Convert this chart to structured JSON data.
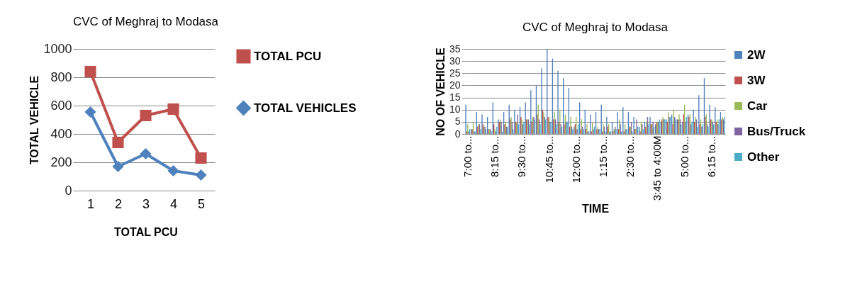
{
  "chart_data": [
    {
      "type": "line",
      "title": "CVC of Meghraj to Modasa",
      "xlabel": "TOTAL PCU",
      "ylabel": "TOTAL VEHICLE",
      "categories": [
        "1",
        "2",
        "3",
        "4",
        "5"
      ],
      "series": [
        {
          "name": "TOTAL PCU",
          "color": "#c0504d",
          "marker": "square",
          "values": [
            840,
            340,
            530,
            575,
            230
          ]
        },
        {
          "name": "TOTAL VEHICLES",
          "color": "#4f81bd",
          "marker": "diamond",
          "values": [
            555,
            170,
            260,
            140,
            110
          ]
        }
      ],
      "ylim": [
        0,
        1000
      ],
      "yticks": [
        0,
        200,
        400,
        600,
        800,
        1000
      ],
      "grid": "y",
      "legend": "right",
      "line_style": "solid"
    },
    {
      "type": "bar",
      "title": "CVC of Meghraj to Modasa",
      "xlabel": "TIME",
      "ylabel": "NO OF VEHICLE",
      "categories": [
        "7:00 to...",
        null,
        null,
        null,
        null,
        "8:15 to...",
        null,
        null,
        null,
        null,
        "9:30 to...",
        null,
        null,
        null,
        null,
        "10:45 to...",
        null,
        null,
        null,
        null,
        "12:00 to...",
        null,
        null,
        null,
        null,
        "1:15 to...",
        null,
        null,
        null,
        null,
        "2:30 to...",
        null,
        null,
        null,
        null,
        "3:45 to 4:00M",
        null,
        null,
        null,
        null,
        "5:00 to...",
        null,
        null,
        null,
        null,
        "6:15 to...",
        null,
        null
      ],
      "series": [
        {
          "name": "2W",
          "color": "#4f81bd",
          "values": [
            12,
            2,
            9,
            8,
            7,
            13,
            6,
            9,
            12,
            10,
            11,
            13,
            18,
            20,
            27,
            35,
            31,
            26,
            23,
            19,
            3,
            13,
            10,
            8,
            9,
            12,
            7,
            5,
            9,
            11,
            9,
            7,
            3,
            5,
            7,
            4,
            5,
            6,
            8,
            6,
            5,
            8,
            10,
            16,
            23,
            12,
            11,
            9
          ]
        },
        {
          "name": "3W",
          "color": "#c0504d",
          "values": [
            1,
            2,
            3,
            4,
            2,
            4,
            5,
            4,
            6,
            5,
            7,
            6,
            5,
            8,
            10,
            7,
            6,
            5,
            4,
            3,
            4,
            2,
            2,
            1,
            2,
            1,
            3,
            1,
            2,
            1,
            3,
            2,
            1,
            3,
            4,
            5,
            6,
            5,
            4,
            6,
            8,
            7,
            5,
            4,
            7,
            6,
            5,
            6
          ]
        },
        {
          "name": "Car",
          "color": "#9bbb59",
          "values": [
            4,
            5,
            4,
            3,
            2,
            2,
            6,
            5,
            7,
            5,
            6,
            6,
            7,
            12,
            9,
            7,
            9,
            10,
            8,
            7,
            7,
            6,
            4,
            5,
            3,
            4,
            4,
            2,
            6,
            4,
            3,
            2,
            5,
            5,
            4,
            5,
            7,
            9,
            10,
            8,
            12,
            8,
            7,
            6,
            8,
            6,
            6,
            7
          ]
        },
        {
          "name": "Bus/Truck",
          "color": "#8064a2",
          "values": [
            1,
            1,
            4,
            3,
            2,
            1,
            5,
            3,
            5,
            8,
            4,
            6,
            7,
            6,
            7,
            5,
            6,
            4,
            5,
            3,
            2,
            3,
            1,
            2,
            2,
            3,
            1,
            3,
            4,
            2,
            5,
            6,
            4,
            7,
            5,
            5,
            6,
            7,
            7,
            6,
            5,
            4,
            6,
            3,
            4,
            5,
            4,
            6
          ]
        },
        {
          "name": "Other",
          "color": "#4bacc6",
          "values": [
            2,
            1,
            2,
            2,
            1,
            3,
            1,
            3,
            2,
            4,
            5,
            4,
            6,
            4,
            6,
            5,
            4,
            3,
            5,
            2,
            4,
            2,
            1,
            3,
            2,
            1,
            1,
            2,
            1,
            2,
            1,
            3,
            2,
            4,
            3,
            6,
            6,
            7,
            6,
            4,
            7,
            5,
            3,
            4,
            3,
            4,
            6,
            7
          ]
        }
      ],
      "ylim": [
        0,
        35
      ],
      "yticks": [
        0,
        5,
        10,
        15,
        20,
        25,
        30,
        35
      ],
      "grid": "y",
      "legend": "right"
    }
  ]
}
